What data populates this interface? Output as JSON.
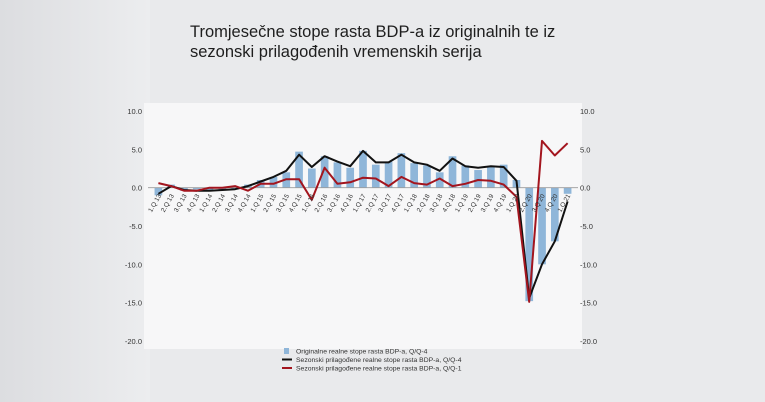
{
  "title_line1": "Tromjesečne stope rasta BDP-a iz originalnih te iz",
  "title_line2": "sezonski prilagođenih vremenskih serija",
  "chart_data": {
    "type": "bar",
    "categories": [
      "1.Q 13",
      "2.Q 13",
      "3.Q 13",
      "4.Q 13",
      "1.Q 14",
      "2.Q 14",
      "3.Q 14",
      "4.Q 14",
      "1.Q 15",
      "2.Q 15",
      "3.Q 15",
      "4.Q 15",
      "1.Q 16",
      "2.Q 16",
      "3.Q 16",
      "4.Q 16",
      "1.Q 17",
      "2.Q 17",
      "3.Q 17",
      "4.Q 17",
      "1.Q 18",
      "2.Q 18",
      "3.Q 18",
      "4.Q 18",
      "1.Q 19",
      "2.Q 19",
      "3.Q 19",
      "4.Q 19",
      "1.Q 20",
      "2.Q 20",
      "3.Q 20",
      "4.Q 20",
      "1.Q 21"
    ],
    "ylim": [
      -20,
      10
    ],
    "yticks": [
      "10.0",
      "5.0",
      "0.0",
      "-5.0",
      "-10.0",
      "-15.0",
      "-20.0"
    ],
    "series": [
      {
        "name": "Originalne realne stope rasta BDP-a, Q/Q-4",
        "type": "bar",
        "color": "#8fb6d9",
        "values": [
          -1.0,
          0.4,
          -0.4,
          -0.2,
          -0.5,
          -0.3,
          -0.2,
          0.4,
          1.0,
          1.4,
          2.0,
          4.7,
          2.5,
          4.1,
          3.3,
          2.6,
          4.8,
          3.0,
          3.4,
          4.5,
          3.2,
          2.9,
          2.0,
          4.1,
          2.9,
          2.3,
          2.8,
          3.0,
          1.0,
          -14.8,
          -10.0,
          -7.0,
          -0.8
        ]
      },
      {
        "name": "Sezonski prilagođene realne stope rasta BDP-a, Q/Q-4",
        "type": "line",
        "color": "#111111",
        "values": [
          -0.8,
          0.2,
          -0.3,
          -0.4,
          -0.4,
          -0.3,
          -0.2,
          0.2,
          0.8,
          1.4,
          2.2,
          4.3,
          2.7,
          4.1,
          3.4,
          2.8,
          4.8,
          3.3,
          3.3,
          4.3,
          3.3,
          3.0,
          2.2,
          3.8,
          2.8,
          2.6,
          2.8,
          2.7,
          0.9,
          -14.4,
          -10.0,
          -7.0,
          -1.8
        ]
      },
      {
        "name": "Sezonski prilagođene realne stope rasta BDP-a, Q/Q-1",
        "type": "line",
        "color": "#a3151e",
        "values": [
          0.6,
          0.2,
          -0.4,
          -0.4,
          0.0,
          0.0,
          0.2,
          -0.4,
          0.5,
          0.5,
          1.1,
          1.1,
          -1.6,
          2.6,
          0.5,
          0.7,
          1.3,
          1.2,
          0.2,
          1.4,
          0.6,
          0.4,
          1.2,
          0.2,
          0.5,
          1.0,
          0.9,
          0.4,
          -1.2,
          -14.9,
          6.1,
          4.2,
          5.8
        ]
      }
    ],
    "legend": "bottom-center"
  }
}
